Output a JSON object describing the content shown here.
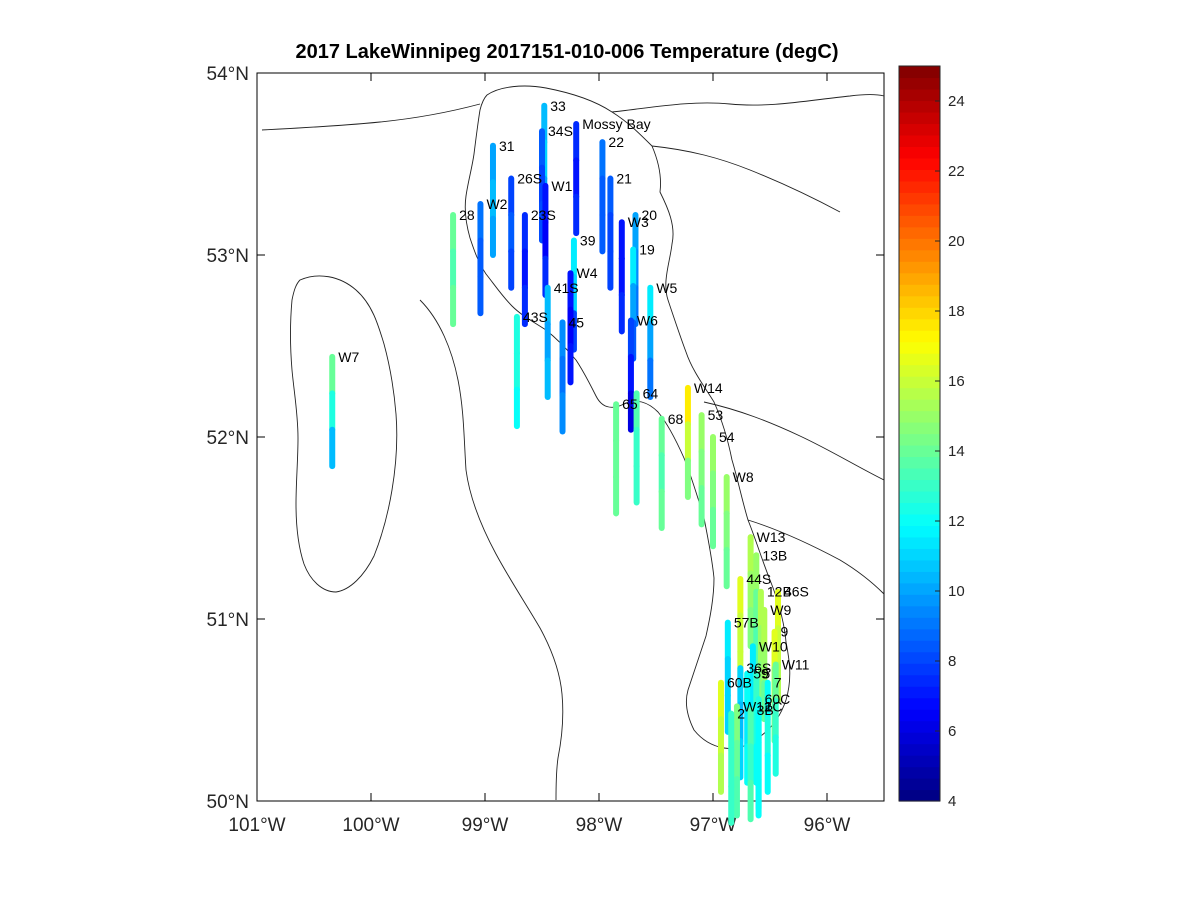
{
  "chart_data": {
    "type": "scatter",
    "title": "2017 LakeWinnipeg 2017151-010-006 Temperature (degC)",
    "lon_range": [
      -101,
      -95.5
    ],
    "lat_range": [
      50,
      54
    ],
    "lon_ticks": [
      {
        "value": -101,
        "label": "101°W"
      },
      {
        "value": -100,
        "label": "100°W"
      },
      {
        "value": -99,
        "label": "99°W"
      },
      {
        "value": -98,
        "label": "98°W"
      },
      {
        "value": -97,
        "label": "97°W"
      },
      {
        "value": -96,
        "label": "96°W"
      }
    ],
    "lat_ticks": [
      {
        "value": 50,
        "label": "50°N"
      },
      {
        "value": 51,
        "label": "51°N"
      },
      {
        "value": 52,
        "label": "52°N"
      },
      {
        "value": 53,
        "label": "53°N"
      },
      {
        "value": 54,
        "label": "54°N"
      }
    ],
    "colorbar": {
      "min": 4,
      "max": 25,
      "colormap": "jet",
      "ticks": [
        4,
        6,
        8,
        10,
        12,
        14,
        16,
        18,
        20,
        22,
        24
      ]
    },
    "stations": [
      {
        "name": "33",
        "lon": -98.48,
        "lat": 53.82,
        "temps": [
          10.5,
          11.0,
          10.0
        ]
      },
      {
        "name": "34S",
        "lon": -98.5,
        "lat": 53.68,
        "temps": [
          8.5,
          8.0,
          8.2
        ]
      },
      {
        "name": "Mossy Bay",
        "lon": -98.2,
        "lat": 53.72,
        "temps": [
          7.5,
          7.0,
          7.5
        ]
      },
      {
        "name": "31",
        "lon": -98.93,
        "lat": 53.6,
        "temps": [
          10.0,
          10.5,
          10.0
        ]
      },
      {
        "name": "22",
        "lon": -97.97,
        "lat": 53.62,
        "temps": [
          9.0,
          8.5,
          8.5
        ]
      },
      {
        "name": "26S",
        "lon": -98.77,
        "lat": 53.42,
        "temps": [
          8.0,
          8.5,
          8.0
        ]
      },
      {
        "name": "21",
        "lon": -97.9,
        "lat": 53.42,
        "temps": [
          8.5,
          8.0,
          8.0
        ]
      },
      {
        "name": "W1",
        "lon": -98.47,
        "lat": 53.38,
        "temps": [
          7.0,
          6.5,
          7.5
        ]
      },
      {
        "name": "W2",
        "lon": -99.04,
        "lat": 53.28,
        "temps": [
          9.0,
          8.5,
          8.5
        ]
      },
      {
        "name": "28",
        "lon": -99.28,
        "lat": 53.22,
        "temps": [
          14.0,
          13.5,
          14.0
        ]
      },
      {
        "name": "23S",
        "lon": -98.65,
        "lat": 53.22,
        "temps": [
          7.5,
          7.0,
          7.5
        ]
      },
      {
        "name": "20",
        "lon": -97.68,
        "lat": 53.22,
        "temps": [
          10.0,
          9.5,
          9.0
        ]
      },
      {
        "name": "W3",
        "lon": -97.8,
        "lat": 53.18,
        "temps": [
          7.0,
          7.0,
          7.5
        ]
      },
      {
        "name": "39",
        "lon": -98.22,
        "lat": 53.08,
        "temps": [
          11.5,
          11.0,
          8.0
        ]
      },
      {
        "name": "19",
        "lon": -97.7,
        "lat": 53.03,
        "temps": [
          11.5,
          10.0,
          8.5
        ]
      },
      {
        "name": "W4",
        "lon": -98.25,
        "lat": 52.9,
        "temps": [
          7.0,
          6.5,
          7.0
        ]
      },
      {
        "name": "W5",
        "lon": -97.55,
        "lat": 52.82,
        "temps": [
          11.5,
          10.0,
          9.0
        ]
      },
      {
        "name": "41S",
        "lon": -98.45,
        "lat": 52.82,
        "temps": [
          10.5,
          10.0,
          10.5
        ]
      },
      {
        "name": "43S",
        "lon": -98.72,
        "lat": 52.66,
        "temps": [
          12.5,
          12.5,
          12.0
        ]
      },
      {
        "name": "45",
        "lon": -98.32,
        "lat": 52.63,
        "temps": [
          9.5,
          9.0,
          9.5
        ]
      },
      {
        "name": "W6",
        "lon": -97.72,
        "lat": 52.64,
        "temps": [
          8.0,
          7.0,
          6.0
        ]
      },
      {
        "name": "W7",
        "lon": -100.34,
        "lat": 52.44,
        "temps": [
          14.0,
          12.5,
          10.5
        ]
      },
      {
        "name": "W14",
        "lon": -97.22,
        "lat": 52.27,
        "temps": [
          17.5,
          16.0,
          14.5
        ]
      },
      {
        "name": "64",
        "lon": -97.67,
        "lat": 52.24,
        "temps": [
          13.5,
          13.0,
          13.0
        ]
      },
      {
        "name": "65",
        "lon": -97.85,
        "lat": 52.18,
        "temps": [
          14.0,
          14.0,
          14.0
        ]
      },
      {
        "name": "53",
        "lon": -97.1,
        "lat": 52.12,
        "temps": [
          15.0,
          14.5,
          14.0
        ]
      },
      {
        "name": "68",
        "lon": -97.45,
        "lat": 52.1,
        "temps": [
          14.0,
          13.5,
          14.0
        ]
      },
      {
        "name": "54",
        "lon": -97.0,
        "lat": 52.0,
        "temps": [
          15.0,
          14.5,
          14.0
        ]
      },
      {
        "name": "W8",
        "lon": -96.88,
        "lat": 51.78,
        "temps": [
          15.0,
          14.5,
          14.0
        ]
      },
      {
        "name": "W13",
        "lon": -96.67,
        "lat": 51.45,
        "temps": [
          15.5,
          15.0,
          14.5
        ]
      },
      {
        "name": "13B",
        "lon": -96.62,
        "lat": 51.35,
        "temps": [
          15.0,
          14.0,
          13.5
        ]
      },
      {
        "name": "44S",
        "lon": -96.76,
        "lat": 51.22,
        "temps": [
          16.5,
          16.0,
          16.0
        ]
      },
      {
        "name": "12B",
        "lon": -96.58,
        "lat": 51.15,
        "temps": [
          15.5,
          15.0,
          14.5
        ]
      },
      {
        "name": "46S",
        "lon": -96.43,
        "lat": 51.15,
        "temps": [
          16.5,
          16.0,
          15.5
        ]
      },
      {
        "name": "W9",
        "lon": -96.55,
        "lat": 51.05,
        "temps": [
          15.5,
          15.0,
          14.0
        ]
      },
      {
        "name": "57B",
        "lon": -96.87,
        "lat": 50.98,
        "temps": [
          11.5,
          11.0,
          11.0
        ]
      },
      {
        "name": "9",
        "lon": -96.46,
        "lat": 50.93,
        "temps": [
          16.5,
          15.0,
          14.0
        ]
      },
      {
        "name": "W10",
        "lon": -96.65,
        "lat": 50.85,
        "temps": [
          11.5,
          11.5,
          12.0
        ]
      },
      {
        "name": "W11",
        "lon": -96.45,
        "lat": 50.75,
        "temps": [
          14.0,
          13.0,
          12.5
        ]
      },
      {
        "name": "36S",
        "lon": -96.76,
        "lat": 50.73,
        "temps": [
          11.0,
          10.5,
          11.0
        ]
      },
      {
        "name": "59",
        "lon": -96.7,
        "lat": 50.7,
        "temps": [
          12.0,
          11.5,
          12.0
        ]
      },
      {
        "name": "5",
        "lon": -96.62,
        "lat": 50.7,
        "temps": [
          13.0,
          12.5,
          12.0
        ]
      },
      {
        "name": "60B",
        "lon": -96.93,
        "lat": 50.65,
        "temps": [
          16.5,
          16.0,
          15.5
        ]
      },
      {
        "name": "7",
        "lon": -96.52,
        "lat": 50.65,
        "temps": [
          12.0,
          12.5,
          12.0
        ]
      },
      {
        "name": "60C",
        "lon": -96.6,
        "lat": 50.56,
        "temps": [
          12.5,
          12.5,
          12.0
        ]
      },
      {
        "name": "W12",
        "lon": -96.79,
        "lat": 50.52,
        "temps": [
          14.5,
          14.0,
          13.5
        ]
      },
      {
        "name": "2",
        "lon": -96.84,
        "lat": 50.48,
        "temps": [
          13.0,
          13.0,
          13.0
        ]
      },
      {
        "name": "3B",
        "lon": -96.67,
        "lat": 50.5,
        "temps": [
          13.5,
          13.0,
          13.5
        ]
      },
      {
        "name": "1C",
        "lon": -96.6,
        "lat": 50.52,
        "temps": [
          12.0,
          12.0,
          12.0
        ]
      }
    ]
  }
}
